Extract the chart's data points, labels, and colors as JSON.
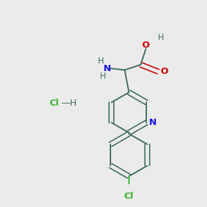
{
  "background_color": "#ebebeb",
  "bond_color": "#3d6b5e",
  "n_color": "#1414e6",
  "o_color": "#cc0000",
  "cl_color": "#3cb432",
  "figsize": [
    3.0,
    3.0
  ],
  "dpi": 100,
  "xlim": [
    0,
    300
  ],
  "ylim": [
    0,
    300
  ]
}
